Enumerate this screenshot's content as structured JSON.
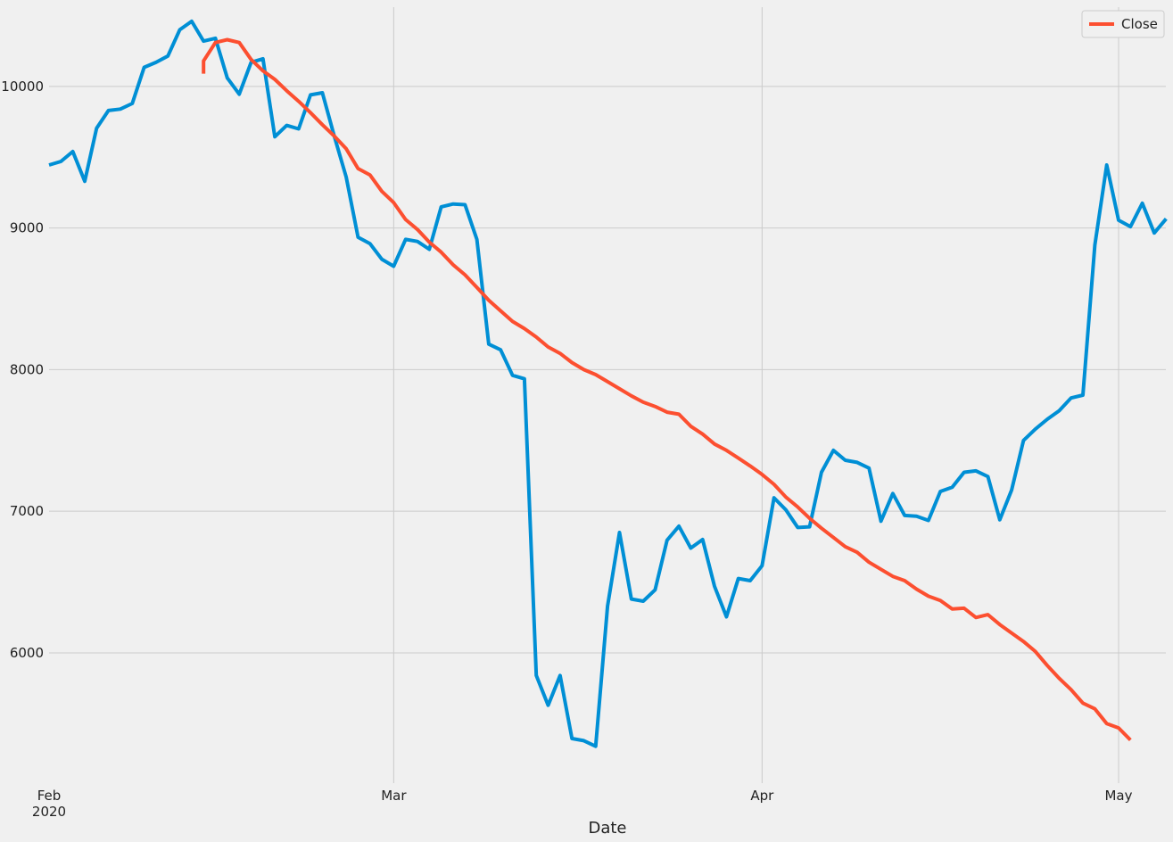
{
  "chart_data": {
    "type": "line",
    "xlabel": "Date",
    "ylabel": "",
    "x_ticks": [
      {
        "date": "2020-02-01",
        "label": "Feb",
        "sublabel": "2020"
      },
      {
        "date": "2020-03-01",
        "label": "Mar",
        "sublabel": ""
      },
      {
        "date": "2020-04-01",
        "label": "Apr",
        "sublabel": ""
      },
      {
        "date": "2020-05-01",
        "label": "May",
        "sublabel": ""
      }
    ],
    "y_ticks": [
      6000,
      7000,
      8000,
      9000,
      10000
    ],
    "xlim": [
      "2020-02-01",
      "2020-05-04"
    ],
    "ylim": [
      5080,
      10560
    ],
    "grid": true,
    "legend_position": "top-right",
    "series": [
      {
        "name": "",
        "color": "#008fd5",
        "points": [
          [
            "2020-02-01",
            9445
          ],
          [
            "2020-02-02",
            9470
          ],
          [
            "2020-02-03",
            9540
          ],
          [
            "2020-02-04",
            9330
          ],
          [
            "2020-02-05",
            9705
          ],
          [
            "2020-02-06",
            9830
          ],
          [
            "2020-02-07",
            9840
          ],
          [
            "2020-02-08",
            9880
          ],
          [
            "2020-02-09",
            10135
          ],
          [
            "2020-02-10",
            10170
          ],
          [
            "2020-02-11",
            10215
          ],
          [
            "2020-02-12",
            10400
          ],
          [
            "2020-02-13",
            10460
          ],
          [
            "2020-02-14",
            10320
          ],
          [
            "2020-02-15",
            10340
          ],
          [
            "2020-02-16",
            10060
          ],
          [
            "2020-02-17",
            9945
          ],
          [
            "2020-02-18",
            10170
          ],
          [
            "2020-02-19",
            10195
          ],
          [
            "2020-02-20",
            9645
          ],
          [
            "2020-02-21",
            9725
          ],
          [
            "2020-02-22",
            9700
          ],
          [
            "2020-02-23",
            9940
          ],
          [
            "2020-02-24",
            9955
          ],
          [
            "2020-02-25",
            9650
          ],
          [
            "2020-02-26",
            9360
          ],
          [
            "2020-02-27",
            8935
          ],
          [
            "2020-02-28",
            8890
          ],
          [
            "2020-02-29",
            8780
          ],
          [
            "2020-03-01",
            8730
          ],
          [
            "2020-03-02",
            8920
          ],
          [
            "2020-03-03",
            8905
          ],
          [
            "2020-03-04",
            8850
          ],
          [
            "2020-03-05",
            9150
          ],
          [
            "2020-03-06",
            9170
          ],
          [
            "2020-03-07",
            9165
          ],
          [
            "2020-03-08",
            8920
          ],
          [
            "2020-03-09",
            8180
          ],
          [
            "2020-03-10",
            8140
          ],
          [
            "2020-03-11",
            7960
          ],
          [
            "2020-03-12",
            7935
          ],
          [
            "2020-03-13",
            5840
          ],
          [
            "2020-03-14",
            5630
          ],
          [
            "2020-03-15",
            5840
          ],
          [
            "2020-03-16",
            5395
          ],
          [
            "2020-03-17",
            5380
          ],
          [
            "2020-03-18",
            5340
          ],
          [
            "2020-03-19",
            6330
          ],
          [
            "2020-03-20",
            6850
          ],
          [
            "2020-03-21",
            6380
          ],
          [
            "2020-03-22",
            6365
          ],
          [
            "2020-03-23",
            6445
          ],
          [
            "2020-03-24",
            6795
          ],
          [
            "2020-03-25",
            6895
          ],
          [
            "2020-03-26",
            6740
          ],
          [
            "2020-03-27",
            6800
          ],
          [
            "2020-03-28",
            6470
          ],
          [
            "2020-03-29",
            6255
          ],
          [
            "2020-03-30",
            6525
          ],
          [
            "2020-03-31",
            6510
          ],
          [
            "2020-04-01",
            6615
          ],
          [
            "2020-04-02",
            7095
          ],
          [
            "2020-04-03",
            7010
          ],
          [
            "2020-04-04",
            6885
          ],
          [
            "2020-04-05",
            6890
          ],
          [
            "2020-04-06",
            7275
          ],
          [
            "2020-04-07",
            7430
          ],
          [
            "2020-04-08",
            7360
          ],
          [
            "2020-04-09",
            7345
          ],
          [
            "2020-04-10",
            7305
          ],
          [
            "2020-04-11",
            6930
          ],
          [
            "2020-04-12",
            7125
          ],
          [
            "2020-04-13",
            6970
          ],
          [
            "2020-04-14",
            6965
          ],
          [
            "2020-04-15",
            6935
          ],
          [
            "2020-04-16",
            7140
          ],
          [
            "2020-04-17",
            7170
          ],
          [
            "2020-04-18",
            7275
          ],
          [
            "2020-04-19",
            7285
          ],
          [
            "2020-04-20",
            7245
          ],
          [
            "2020-04-21",
            6940
          ],
          [
            "2020-04-22",
            7150
          ],
          [
            "2020-04-23",
            7500
          ],
          [
            "2020-04-24",
            7580
          ],
          [
            "2020-04-25",
            7650
          ],
          [
            "2020-04-26",
            7710
          ],
          [
            "2020-04-27",
            7800
          ],
          [
            "2020-04-28",
            7820
          ],
          [
            "2020-04-29",
            8880
          ],
          [
            "2020-04-30",
            9445
          ],
          [
            "2020-05-01",
            9055
          ],
          [
            "2020-05-02",
            9010
          ],
          [
            "2020-05-03",
            9175
          ],
          [
            "2020-05-04",
            8965
          ],
          [
            "2020-05-05",
            9065
          ]
        ]
      },
      {
        "name": "Close",
        "color": "#fc4f30",
        "points": [
          [
            "2020-02-14",
            10090
          ],
          [
            "2020-02-14",
            10180
          ],
          [
            "2020-02-15",
            10310
          ],
          [
            "2020-02-16",
            10330
          ],
          [
            "2020-02-17",
            10310
          ],
          [
            "2020-02-18",
            10190
          ],
          [
            "2020-02-19",
            10110
          ],
          [
            "2020-02-20",
            10050
          ],
          [
            "2020-02-21",
            9970
          ],
          [
            "2020-02-22",
            9895
          ],
          [
            "2020-02-23",
            9815
          ],
          [
            "2020-02-24",
            9730
          ],
          [
            "2020-02-25",
            9650
          ],
          [
            "2020-02-26",
            9560
          ],
          [
            "2020-02-27",
            9420
          ],
          [
            "2020-02-28",
            9375
          ],
          [
            "2020-02-29",
            9260
          ],
          [
            "2020-03-01",
            9180
          ],
          [
            "2020-03-02",
            9060
          ],
          [
            "2020-03-03",
            8990
          ],
          [
            "2020-03-04",
            8900
          ],
          [
            "2020-03-05",
            8830
          ],
          [
            "2020-03-06",
            8740
          ],
          [
            "2020-03-07",
            8670
          ],
          [
            "2020-03-08",
            8580
          ],
          [
            "2020-03-09",
            8490
          ],
          [
            "2020-03-10",
            8415
          ],
          [
            "2020-03-11",
            8340
          ],
          [
            "2020-03-12",
            8290
          ],
          [
            "2020-03-13",
            8230
          ],
          [
            "2020-03-14",
            8160
          ],
          [
            "2020-03-15",
            8115
          ],
          [
            "2020-03-16",
            8050
          ],
          [
            "2020-03-17",
            8000
          ],
          [
            "2020-03-18",
            7965
          ],
          [
            "2020-03-19",
            7915
          ],
          [
            "2020-03-20",
            7865
          ],
          [
            "2020-03-21",
            7815
          ],
          [
            "2020-03-22",
            7770
          ],
          [
            "2020-03-23",
            7740
          ],
          [
            "2020-03-24",
            7700
          ],
          [
            "2020-03-25",
            7685
          ],
          [
            "2020-03-26",
            7600
          ],
          [
            "2020-03-27",
            7545
          ],
          [
            "2020-03-28",
            7475
          ],
          [
            "2020-03-29",
            7430
          ],
          [
            "2020-03-30",
            7375
          ],
          [
            "2020-03-31",
            7320
          ],
          [
            "2020-04-01",
            7260
          ],
          [
            "2020-04-02",
            7190
          ],
          [
            "2020-04-03",
            7100
          ],
          [
            "2020-04-04",
            7030
          ],
          [
            "2020-04-05",
            6950
          ],
          [
            "2020-04-06",
            6880
          ],
          [
            "2020-04-07",
            6815
          ],
          [
            "2020-04-08",
            6750
          ],
          [
            "2020-04-09",
            6710
          ],
          [
            "2020-04-10",
            6640
          ],
          [
            "2020-04-11",
            6590
          ],
          [
            "2020-04-12",
            6540
          ],
          [
            "2020-04-13",
            6510
          ],
          [
            "2020-04-14",
            6450
          ],
          [
            "2020-04-15",
            6400
          ],
          [
            "2020-04-16",
            6370
          ],
          [
            "2020-04-17",
            6310
          ],
          [
            "2020-04-18",
            6315
          ],
          [
            "2020-04-19",
            6250
          ],
          [
            "2020-04-20",
            6270
          ],
          [
            "2020-04-21",
            6200
          ],
          [
            "2020-04-22",
            6140
          ],
          [
            "2020-04-23",
            6080
          ],
          [
            "2020-04-24",
            6010
          ],
          [
            "2020-04-25",
            5910
          ],
          [
            "2020-04-26",
            5820
          ],
          [
            "2020-04-27",
            5740
          ],
          [
            "2020-04-28",
            5645
          ],
          [
            "2020-04-29",
            5605
          ],
          [
            "2020-04-30",
            5500
          ],
          [
            "2020-05-01",
            5470
          ],
          [
            "2020-05-02",
            5385
          ]
        ]
      }
    ]
  }
}
